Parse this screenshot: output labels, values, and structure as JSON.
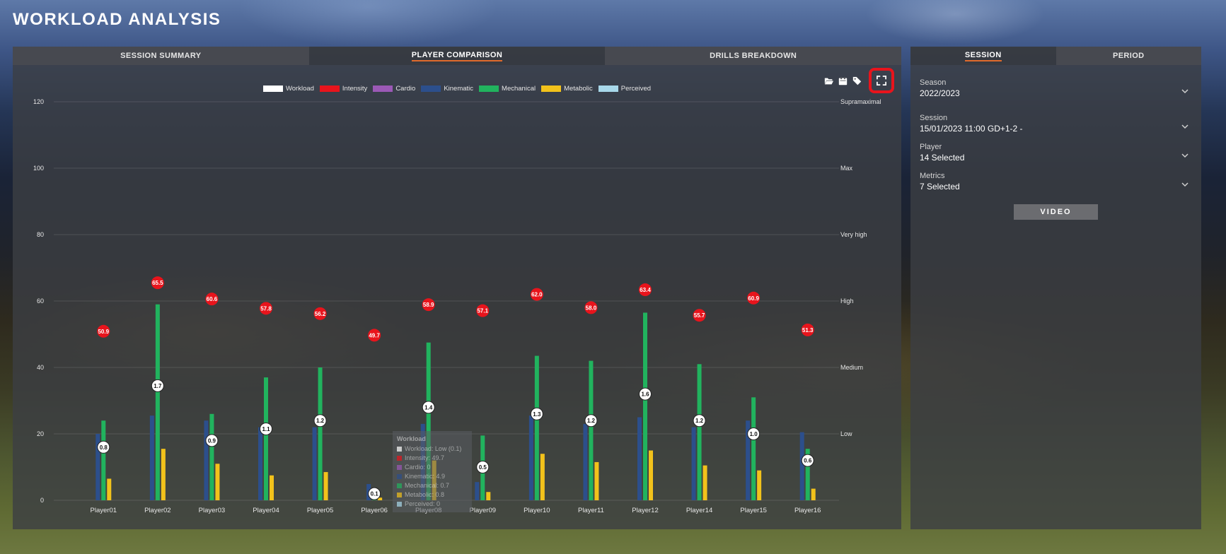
{
  "page": {
    "title": "WORKLOAD ANALYSIS"
  },
  "left_tabs": [
    "SESSION SUMMARY",
    "PLAYER COMPARISON",
    "DRILLS BREAKDOWN"
  ],
  "right_tabs": [
    "SESSION",
    "PERIOD"
  ],
  "toolbar": {
    "icons": [
      "folder-open-icon",
      "calendar-icon",
      "tags-icon",
      "fullscreen-icon"
    ],
    "highlight_color": "#e8141c"
  },
  "filters": {
    "season": {
      "label": "Season",
      "value": "2022/2023"
    },
    "session": {
      "label": "Session",
      "value": "15/01/2023 11:00 GD+1-2 -"
    },
    "player": {
      "label": "Player",
      "value": "14 Selected"
    },
    "metrics": {
      "label": "Metrics",
      "value": "7 Selected"
    },
    "video_button": "VIDEO"
  },
  "colors": {
    "workload": "#ffffff",
    "intensity": "#e8141c",
    "cardio": "#9b59b6",
    "kinematic": "#2c4f8c",
    "mechanical": "#21b35e",
    "metabolic": "#f2c21b",
    "perceived": "#a8d8ea",
    "accent": "#e06a2c"
  },
  "tooltip": {
    "title": "Workload",
    "rows": [
      {
        "label": "Workload: Low (0.1)",
        "color": "#ffffff"
      },
      {
        "label": "Intensity: 49.7",
        "color": "#e8141c"
      },
      {
        "label": "Cardio: 0",
        "color": "#9b59b6"
      },
      {
        "label": "Kinematic: 4.9",
        "color": "#2c4f8c"
      },
      {
        "label": "Mechanical: 0.7",
        "color": "#21b35e"
      },
      {
        "label": "Metabolic: 0.8",
        "color": "#f2c21b"
      },
      {
        "label": "Perceived: 0",
        "color": "#a8d8ea"
      }
    ]
  },
  "chart_data": {
    "type": "bar",
    "ylim": [
      0,
      120
    ],
    "yticks": [
      0,
      20,
      40,
      60,
      80,
      100,
      120
    ],
    "right_axis_labels": [
      {
        "value": 120,
        "label": "Supramaximal"
      },
      {
        "value": 100,
        "label": "Max"
      },
      {
        "value": 80,
        "label": "Very high"
      },
      {
        "value": 60,
        "label": "High"
      },
      {
        "value": 40,
        "label": "Medium"
      },
      {
        "value": 20,
        "label": "Low"
      }
    ],
    "legend": [
      "Workload",
      "Intensity",
      "Cardio",
      "Kinematic",
      "Mechanical",
      "Metabolic",
      "Perceived"
    ],
    "legend_position": "top-center",
    "grid": true,
    "categories": [
      "Player01",
      "Player02",
      "Player03",
      "Player04",
      "Player05",
      "Player06",
      "Player08",
      "Player09",
      "Player10",
      "Player11",
      "Player12",
      "Player14",
      "Player15",
      "Player16"
    ],
    "series": [
      {
        "name": "Kinematic",
        "type": "bar",
        "values": [
          20,
          25.5,
          24,
          22,
          22,
          4.9,
          23,
          5.5,
          25.5,
          23,
          25,
          22,
          24,
          20.5
        ]
      },
      {
        "name": "Mechanical",
        "type": "bar",
        "values": [
          24,
          59,
          26,
          37,
          40,
          0.7,
          47.5,
          19.5,
          43.5,
          42,
          56.5,
          41,
          31,
          15.5
        ]
      },
      {
        "name": "Metabolic",
        "type": "bar",
        "values": [
          6.5,
          15.5,
          11,
          7.5,
          8.5,
          0.8,
          12,
          2.5,
          14,
          11.5,
          15,
          10.5,
          9,
          3.5
        ]
      },
      {
        "name": "Intensity",
        "type": "point",
        "values": [
          50.9,
          65.5,
          60.6,
          57.8,
          56.2,
          49.7,
          58.9,
          57.1,
          62.0,
          58.0,
          63.4,
          55.7,
          60.9,
          51.3
        ]
      },
      {
        "name": "Workload",
        "type": "point",
        "values": [
          0.8,
          1.7,
          0.9,
          1.1,
          1.2,
          0.1,
          1.4,
          0.5,
          1.3,
          1.2,
          1.6,
          1.2,
          1.0,
          0.6
        ],
        "display_position": [
          16,
          34.5,
          18,
          21.5,
          24,
          2,
          28,
          10,
          26,
          24,
          32,
          24,
          20,
          12
        ]
      }
    ]
  }
}
